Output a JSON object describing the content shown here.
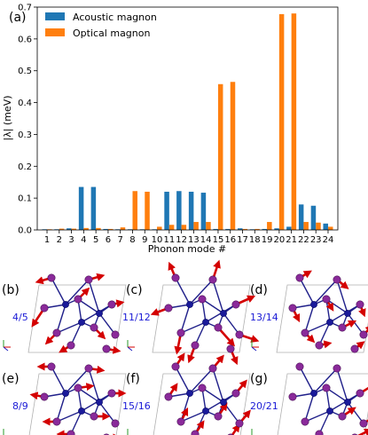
{
  "chart_data": {
    "type": "bar",
    "panel_label": "(a)",
    "xlabel": "Phonon mode #",
    "ylabel": "|λ| (meV)",
    "categories": [
      "1",
      "2",
      "3",
      "4",
      "5",
      "6",
      "7",
      "8",
      "9",
      "10",
      "11",
      "12",
      "13",
      "14",
      "15",
      "16",
      "17",
      "18",
      "19",
      "20",
      "21",
      "22",
      "23",
      "24"
    ],
    "ylim": [
      0,
      0.7
    ],
    "yticks": [
      "0.0",
      "0.1",
      "0.2",
      "0.3",
      "0.4",
      "0.5",
      "0.6",
      "0.7"
    ],
    "grid": false,
    "legend_position": "top-left",
    "series": [
      {
        "name": "Acoustic magnon",
        "color": "#1f77b4",
        "values": [
          0.002,
          0.002,
          0.005,
          0.135,
          0.135,
          0.003,
          0.002,
          0.002,
          0.002,
          0.002,
          0.12,
          0.122,
          0.12,
          0.117,
          0.003,
          0.003,
          0.005,
          0.002,
          0.003,
          0.005,
          0.01,
          0.08,
          0.076,
          0.02
        ]
      },
      {
        "name": "Optical magnon",
        "color": "#ff7f0e",
        "values": [
          0.002,
          0.004,
          0.004,
          0.006,
          0.006,
          0.003,
          0.008,
          0.122,
          0.12,
          0.01,
          0.016,
          0.016,
          0.025,
          0.025,
          0.458,
          0.465,
          0.003,
          0.003,
          0.025,
          0.678,
          0.68,
          0.025,
          0.023,
          0.01
        ]
      }
    ]
  },
  "structure_panels": [
    {
      "tag": "(b)",
      "modes": "4/5"
    },
    {
      "tag": "(c)",
      "modes": "11/12"
    },
    {
      "tag": "(d)",
      "modes": "13/14"
    },
    {
      "tag": "(e)",
      "modes": "8/9"
    },
    {
      "tag": "(f)",
      "modes": "15/16"
    },
    {
      "tag": "(g)",
      "modes": "20/21"
    }
  ]
}
